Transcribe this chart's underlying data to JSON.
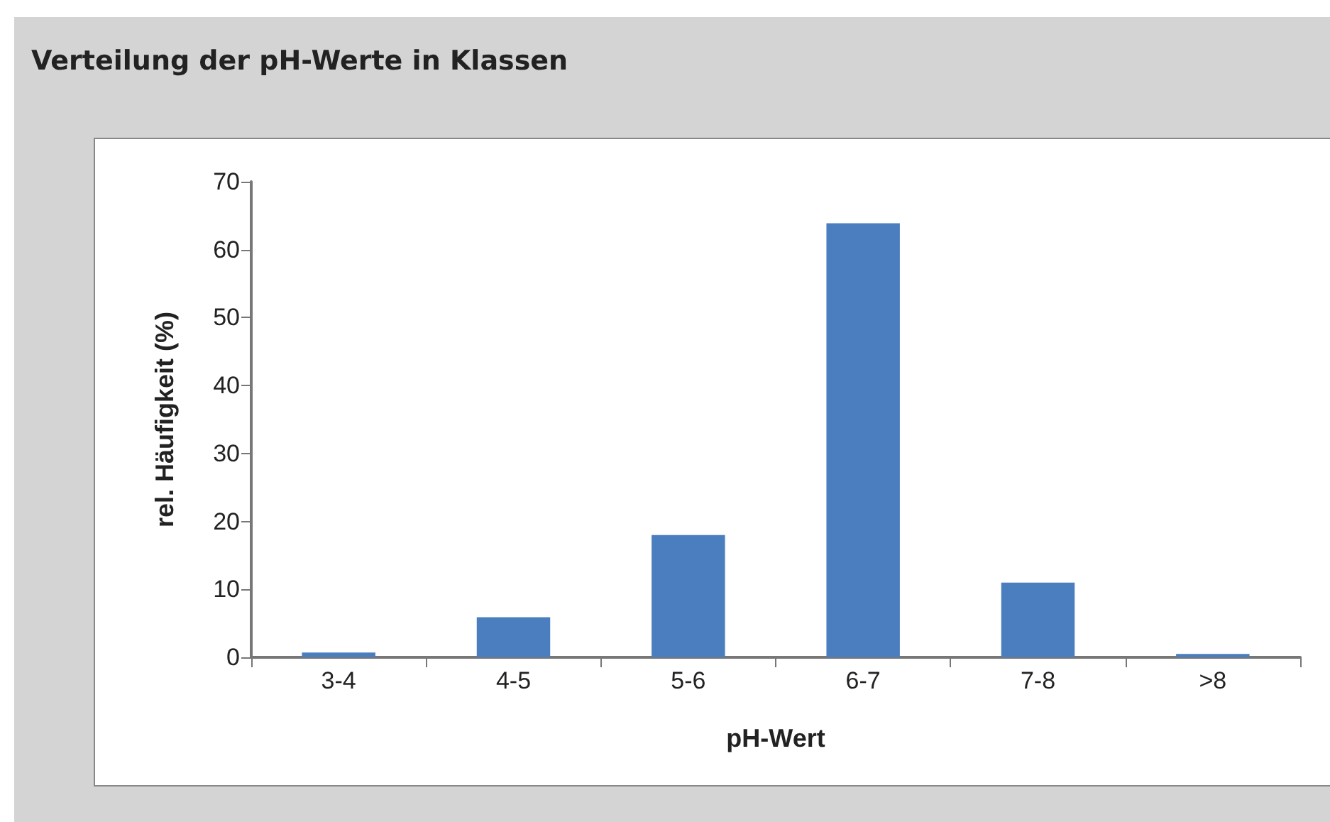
{
  "chart_data": {
    "type": "bar",
    "title": "Verteilung der pH-Werte in Klassen",
    "xlabel": "pH-Wert",
    "ylabel": "rel. Häufigkeit (%)",
    "categories": [
      "3-4",
      "4-5",
      "5-6",
      "6-7",
      "7-8",
      ">8"
    ],
    "values": [
      0.7,
      5.9,
      18,
      63.9,
      11,
      0.5
    ],
    "color": "#4a7ebf",
    "ylim": [
      0,
      70
    ],
    "yticks": [
      0,
      10,
      20,
      30,
      40,
      50,
      60,
      70
    ],
    "grid": false
  }
}
